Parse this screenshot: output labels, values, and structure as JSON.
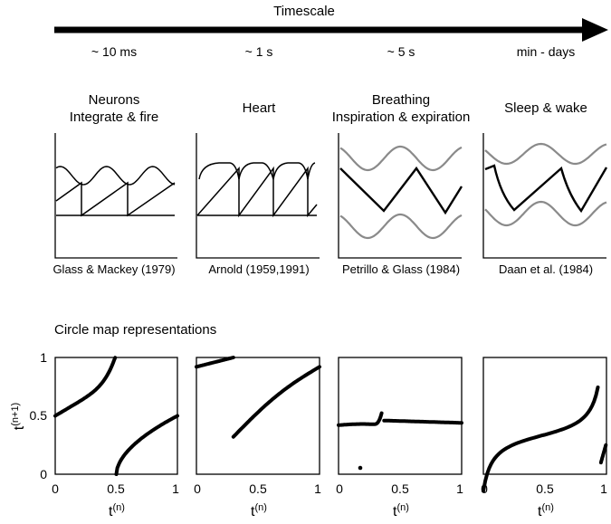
{
  "timescale": {
    "title": "Timescale",
    "labels": [
      "~ 10 ms",
      "~ 1 s",
      "~ 5 s",
      "min - days"
    ]
  },
  "panels": [
    {
      "title1": "Neurons",
      "title2": "Integrate & fire",
      "citation": "Glass & Mackey (1979)"
    },
    {
      "title1": "Heart",
      "title2": "",
      "citation": "Arnold (1959,1991)"
    },
    {
      "title1": "Breathing",
      "title2": "Inspiration & expiration",
      "citation": "Petrillo & Glass (1984)"
    },
    {
      "title1": "Sleep & wake",
      "title2": "",
      "citation": "Daan et al. (1984)"
    }
  ],
  "circle_map": {
    "heading": "Circle map representations",
    "ylabel_base": "t",
    "ylabel_sup": "(n+1)",
    "xlabel_base": "t",
    "xlabel_sup": "(n)",
    "xticks": [
      "0",
      "0.5",
      "1"
    ],
    "yticks": [
      "0",
      "0.5",
      "1"
    ]
  },
  "colors": {
    "line": "#000000",
    "gray": "#8a8a8a"
  }
}
